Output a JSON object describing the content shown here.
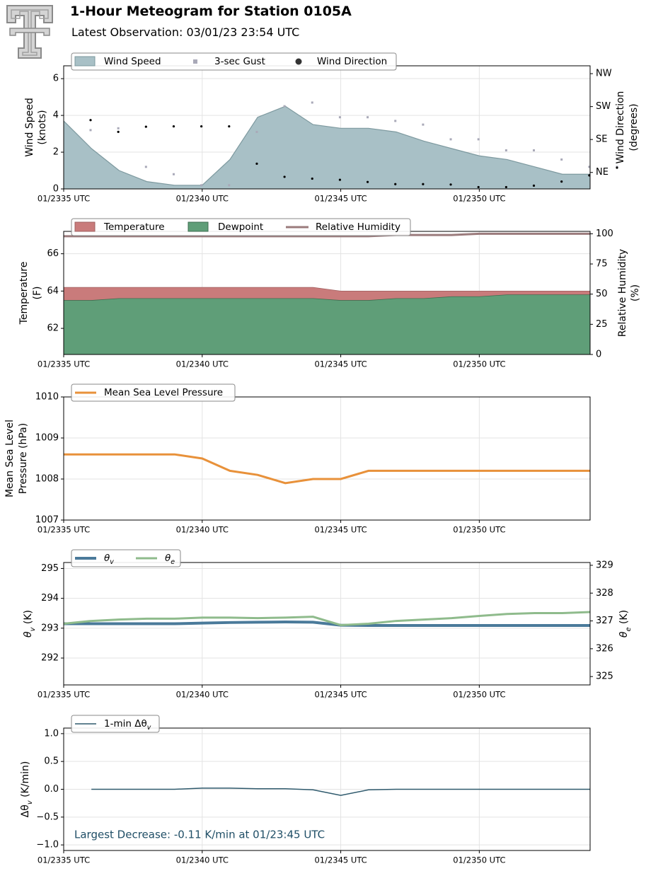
{
  "header": {
    "title": "1-Hour Meteogram for Station 0105A",
    "subtitle": "Latest Observation: 03/01/23 23:54 UTC",
    "logo": "texas-tech-double-t-logo"
  },
  "colors": {
    "wind_fill": "#a8c0c6",
    "wind_edge": "#7d999f",
    "gust": "#a9a9b8",
    "direction": "#000000",
    "temperature": "#c97b7b",
    "dewpoint": "#5f9e78",
    "rh": "#9b7b7c",
    "pressure": "#e8913a",
    "theta_v": "#4a7a9a",
    "theta_e": "#8fbb8c",
    "delta": "#2f5a6d",
    "annotation": "#1f4e66",
    "grid": "#e3e3e3"
  },
  "x_ticks": [
    "01/2335 UTC",
    "01/2340 UTC",
    "01/2345 UTC",
    "01/2350 UTC"
  ],
  "chart_data": [
    {
      "type": "area",
      "id": "wind",
      "legend": [
        "Wind Speed",
        "3-sec Gust",
        "Wind Direction"
      ],
      "ylabel": [
        "Wind Speed",
        "(knots)"
      ],
      "ylabel_right": [
        "Wind Direction",
        "(degrees)"
      ],
      "ylim": [
        0,
        6.7
      ],
      "yticks": [
        0,
        2,
        4,
        6
      ],
      "y2_ticks": [
        "NE",
        "SE",
        "SW",
        "NW"
      ],
      "grid": true,
      "x_minutes": [
        0,
        1,
        2,
        3,
        4,
        5,
        6,
        7,
        8,
        9,
        10,
        11,
        12,
        13,
        14,
        15,
        16,
        17,
        18,
        19
      ],
      "series": [
        {
          "name": "Wind Speed",
          "values": [
            3.7,
            2.2,
            1.0,
            0.4,
            0.2,
            0.2,
            1.6,
            3.9,
            4.5,
            3.5,
            3.3,
            3.3,
            3.1,
            2.6,
            2.2,
            1.8,
            1.6,
            1.2,
            0.8,
            0.8
          ]
        },
        {
          "name": "3-sec Gust",
          "values": [
            3.2,
            3.3,
            1.2,
            0.8,
            0.2,
            0.2,
            3.1,
            4.5,
            4.7,
            3.9,
            3.9,
            3.7,
            3.5,
            2.7,
            2.7,
            2.1,
            2.1,
            1.6,
            1.2,
            1.2
          ]
        },
        {
          "name": "Wind Direction",
          "values": [
            188,
            156,
            170,
            171,
            171,
            171,
            69,
            33,
            28,
            25,
            19,
            13,
            13,
            12,
            5,
            5,
            9,
            20,
            37,
            58
          ]
        }
      ]
    },
    {
      "type": "area",
      "id": "temp",
      "legend": [
        "Temperature",
        "Dewpoint",
        "Relative Humidity"
      ],
      "ylabel": [
        "Temperature",
        "(F)"
      ],
      "ylabel_right": [
        "Relative Humidity",
        "(%)"
      ],
      "ylim": [
        60.6,
        67.2
      ],
      "yticks": [
        62,
        64,
        66
      ],
      "y2lim": [
        0,
        102
      ],
      "y2ticks": [
        0,
        25,
        50,
        75,
        100
      ],
      "grid": true,
      "x_minutes": [
        0,
        1,
        2,
        3,
        4,
        5,
        6,
        7,
        8,
        9,
        10,
        11,
        12,
        13,
        14,
        15,
        16,
        17,
        18,
        19
      ],
      "series": [
        {
          "name": "Temperature",
          "values": [
            64.2,
            64.2,
            64.2,
            64.2,
            64.2,
            64.2,
            64.2,
            64.2,
            64.2,
            64.2,
            64.0,
            64.0,
            64.0,
            64.0,
            64.0,
            64.0,
            64.0,
            64.0,
            64.0,
            64.0
          ]
        },
        {
          "name": "Dewpoint",
          "values": [
            63.5,
            63.5,
            63.6,
            63.6,
            63.6,
            63.6,
            63.6,
            63.6,
            63.6,
            63.6,
            63.5,
            63.5,
            63.6,
            63.6,
            63.7,
            63.7,
            63.8,
            63.8,
            63.8,
            63.8
          ]
        },
        {
          "name": "Relative Humidity",
          "values": [
            98,
            98,
            98,
            98,
            98,
            98,
            98,
            98,
            98,
            98,
            98,
            98,
            99,
            99,
            99,
            100,
            100,
            100,
            100,
            100
          ]
        }
      ]
    },
    {
      "type": "line",
      "id": "pressure",
      "legend": [
        "Mean Sea Level Pressure"
      ],
      "ylabel": [
        "Mean Sea Level",
        "Pressure (hPa)"
      ],
      "ylim": [
        1007,
        1010
      ],
      "yticks": [
        1007,
        1008,
        1009,
        1010
      ],
      "grid": true,
      "x_minutes": [
        0,
        1,
        2,
        3,
        4,
        5,
        6,
        7,
        8,
        9,
        10,
        11,
        12,
        13,
        14,
        15,
        16,
        17,
        18,
        19
      ],
      "series": [
        {
          "name": "Mean Sea Level Pressure",
          "values": [
            1008.6,
            1008.6,
            1008.6,
            1008.6,
            1008.6,
            1008.5,
            1008.2,
            1008.1,
            1007.9,
            1008.0,
            1008.0,
            1008.2,
            1008.2,
            1008.2,
            1008.2,
            1008.2,
            1008.2,
            1008.2,
            1008.2,
            1008.2
          ]
        }
      ]
    },
    {
      "type": "line",
      "id": "theta",
      "legend": [
        "θv",
        "θe"
      ],
      "ylabel": [
        "θv (K)"
      ],
      "ylabel_right": [
        "θe (K)"
      ],
      "ylim": [
        291.1,
        295.2
      ],
      "yticks": [
        292,
        293,
        294,
        295
      ],
      "y2lim": [
        324.7,
        329.1
      ],
      "y2ticks": [
        325,
        326,
        327,
        328,
        329
      ],
      "grid": true,
      "x_minutes": [
        0,
        1,
        2,
        3,
        4,
        5,
        6,
        7,
        8,
        9,
        10,
        11,
        12,
        13,
        14,
        15,
        16,
        17,
        18,
        19
      ],
      "series": [
        {
          "name": "θv",
          "values": [
            293.15,
            293.15,
            293.15,
            293.15,
            293.15,
            293.17,
            293.19,
            293.2,
            293.21,
            293.2,
            293.1,
            293.09,
            293.09,
            293.09,
            293.09,
            293.09,
            293.09,
            293.09,
            293.09,
            293.09
          ]
        },
        {
          "name": "θe",
          "values": [
            326.9,
            327.0,
            327.05,
            327.08,
            327.08,
            327.12,
            327.12,
            327.1,
            327.12,
            327.15,
            326.85,
            326.9,
            327.0,
            327.05,
            327.1,
            327.18,
            327.25,
            327.28,
            327.28,
            327.32
          ]
        }
      ]
    },
    {
      "type": "line",
      "id": "delta",
      "legend": [
        "1-min Δθv"
      ],
      "ylabel": [
        "Δθv (K/min)"
      ],
      "ylim": [
        -1.1,
        1.1
      ],
      "yticks": [
        -1.0,
        -0.5,
        0.0,
        0.5,
        1.0
      ],
      "annotation": "Largest Decrease: -0.11 K/min at 01/23:45 UTC",
      "grid": true,
      "x_minutes": [
        1,
        2,
        3,
        4,
        5,
        6,
        7,
        8,
        9,
        10,
        11,
        12,
        13,
        14,
        15,
        16,
        17,
        18,
        19
      ],
      "series": [
        {
          "name": "1-min Δθv",
          "values": [
            0.0,
            0.0,
            0.0,
            0.0,
            0.02,
            0.02,
            0.01,
            0.01,
            -0.01,
            -0.11,
            -0.01,
            0.0,
            0.0,
            0.0,
            0.0,
            0.0,
            0.0,
            0.0,
            0.0
          ]
        }
      ]
    }
  ]
}
